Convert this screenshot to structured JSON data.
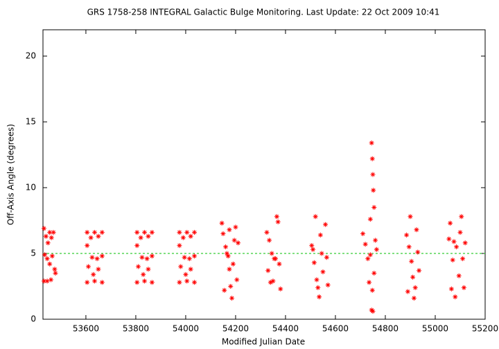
{
  "chart_data": {
    "type": "scatter",
    "title": "GRS 1758-258   INTEGRAL Galactic Bulge Monitoring.  Last Update: 22 Oct 2009 10:41",
    "x_label": "Modified Julian Date",
    "y_label": "Off-Axis Angle (degrees)",
    "color": "#ff0000",
    "reference_line": {
      "value": 5,
      "color": "#00c000"
    },
    "xlim": [
      53428,
      55200
    ],
    "ylim": [
      0,
      22
    ],
    "xticks": [
      53600,
      53800,
      54000,
      54200,
      54400,
      54600,
      54800,
      55000,
      55200
    ],
    "yticks": [
      0,
      5,
      10,
      15,
      20
    ],
    "x": [
      53432,
      53440,
      53448,
      53455,
      53462,
      53470,
      53435,
      53445,
      53455,
      53465,
      53475,
      53432,
      53445,
      53460,
      53478,
      53605,
      53620,
      53635,
      53650,
      53665,
      53605,
      53625,
      53645,
      53665,
      53610,
      53630,
      53650,
      53605,
      53635,
      53665,
      53805,
      53820,
      53835,
      53850,
      53865,
      53805,
      53825,
      53845,
      53865,
      53810,
      53830,
      53850,
      53805,
      53835,
      53865,
      53975,
      53990,
      54005,
      54020,
      54035,
      53975,
      53995,
      54015,
      54035,
      53980,
      54000,
      54020,
      53975,
      54005,
      54035,
      54145,
      54150,
      54160,
      54170,
      54175,
      54180,
      54185,
      54190,
      54195,
      54200,
      54205,
      54155,
      54165,
      54210,
      54175,
      54325,
      54335,
      54345,
      54355,
      54365,
      54370,
      54375,
      54380,
      54330,
      54350,
      54360,
      54340,
      54505,
      54515,
      54520,
      54525,
      54530,
      54535,
      54540,
      54545,
      54550,
      54560,
      54565,
      54570,
      54510,
      54710,
      54720,
      54730,
      54735,
      54740,
      54745,
      54748,
      54750,
      54752,
      54755,
      54745,
      54750,
      54760,
      54755,
      54748,
      54740,
      54765,
      54885,
      54895,
      54900,
      54905,
      54910,
      54915,
      54920,
      54925,
      54930,
      54935,
      54890,
      55055,
      55060,
      55065,
      55070,
      55080,
      55085,
      55095,
      55100,
      55105,
      55110,
      55115,
      55120,
      55075
    ],
    "values": [
      6.9,
      6.3,
      5.8,
      6.6,
      6.2,
      6.6,
      4.9,
      4.6,
      4.2,
      4.8,
      3.8,
      2.9,
      2.9,
      3.0,
      3.5,
      6.6,
      6.2,
      6.6,
      6.3,
      6.6,
      5.6,
      4.7,
      4.6,
      4.8,
      4.0,
      3.4,
      3.8,
      2.8,
      2.9,
      2.8,
      6.6,
      6.2,
      6.6,
      6.3,
      6.6,
      5.6,
      4.7,
      4.6,
      4.8,
      4.0,
      3.4,
      3.8,
      2.8,
      2.9,
      2.8,
      6.6,
      6.2,
      6.6,
      6.3,
      6.6,
      5.6,
      4.7,
      4.6,
      4.8,
      4.0,
      3.4,
      3.8,
      2.8,
      2.9,
      2.8,
      7.3,
      6.5,
      5.5,
      4.8,
      3.8,
      2.5,
      1.6,
      4.2,
      6.0,
      7.0,
      3.0,
      2.2,
      5.0,
      5.8,
      6.8,
      6.6,
      6.0,
      5.0,
      4.6,
      7.8,
      7.4,
      4.2,
      2.3,
      3.7,
      2.9,
      4.6,
      2.8,
      5.6,
      4.3,
      7.8,
      3.0,
      2.4,
      1.7,
      6.4,
      5.0,
      3.6,
      7.2,
      4.7,
      2.6,
      5.3,
      6.5,
      5.7,
      4.6,
      2.8,
      7.6,
      13.4,
      12.2,
      11.0,
      9.8,
      8.5,
      0.7,
      0.6,
      6.0,
      3.5,
      2.2,
      4.9,
      5.3,
      6.4,
      5.5,
      7.8,
      4.4,
      3.2,
      1.6,
      2.4,
      6.8,
      5.1,
      3.7,
      2.1,
      6.1,
      7.3,
      2.3,
      4.5,
      1.7,
      5.5,
      3.3,
      6.6,
      7.8,
      4.6,
      2.4,
      5.8,
      5.9
    ]
  }
}
